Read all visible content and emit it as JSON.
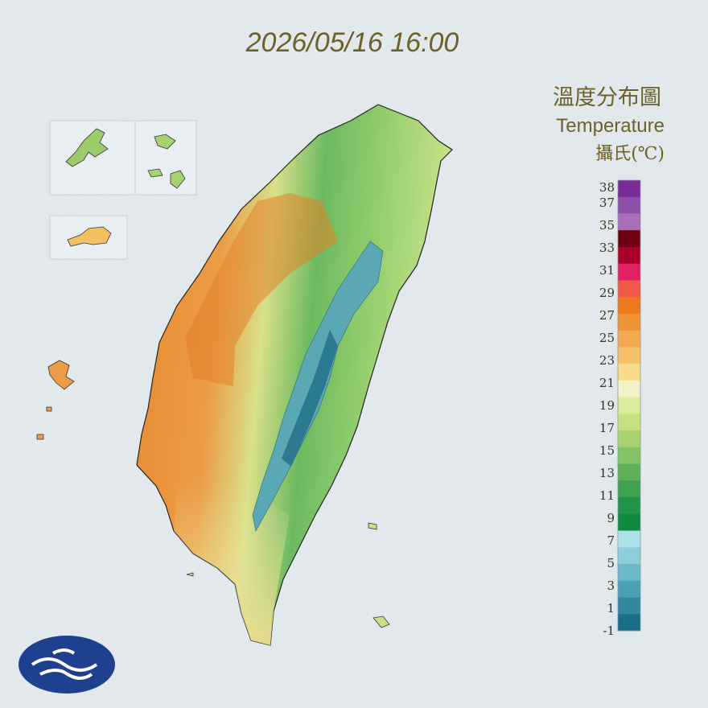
{
  "header": {
    "timestamp": "2026/05/16 16:00",
    "title": "溫度分布圖",
    "subtitle": "Temperature",
    "unit": "攝氏(℃)"
  },
  "legend": {
    "labels": [
      38,
      37,
      35,
      33,
      31,
      29,
      27,
      25,
      23,
      21,
      19,
      17,
      15,
      13,
      11,
      9,
      7,
      5,
      3,
      1,
      -1
    ],
    "colors": [
      "#7a2c96",
      "#8f50aa",
      "#a870b8",
      "#6e0010",
      "#a8002a",
      "#e02060",
      "#f0584a",
      "#ec7a1c",
      "#f09236",
      "#f4aa50",
      "#f6c268",
      "#f8dc8c",
      "#f2f2c6",
      "#dcec9c",
      "#c6e082",
      "#a6d272",
      "#84c266",
      "#5eae5a",
      "#3ea050",
      "#209448",
      "#0e8a40",
      "#aee2ea",
      "#8ccfda",
      "#6cb8c8",
      "#4ea0b4",
      "#32889e",
      "#1c6e88"
    ]
  }
}
